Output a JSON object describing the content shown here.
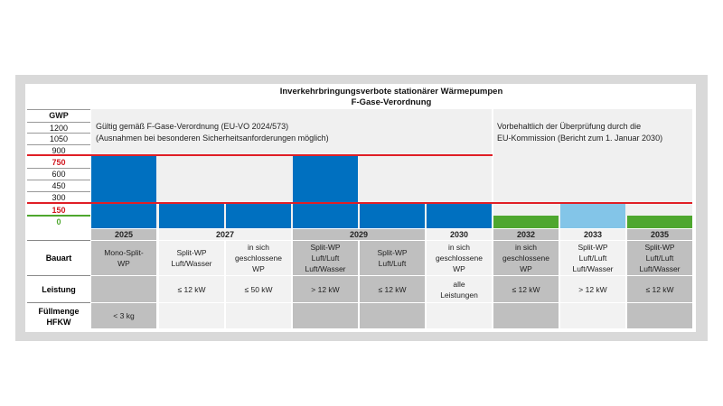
{
  "title": {
    "line1": "Inverkehrbringungsverbote stationärer Wärmepumpen",
    "line2": "F-Gase-Verordnung"
  },
  "notes": {
    "left_line1": "Gültig gemäß F-Gase-Verordnung (EU-VO 2024/573)",
    "left_line2": "(Ausnahmen bei besonderen Sicherheitsanforderungen möglich)",
    "right_line1": "Vorbehaltlich der Überprüfung durch die",
    "right_line2": "EU-Kommission (Bericht zum 1. Januar 2030)"
  },
  "axis": {
    "label": "GWP",
    "ticks": [
      "1200",
      "1050",
      "900",
      "750",
      "600",
      "450",
      "300",
      "150",
      "0"
    ]
  },
  "colors": {
    "blue": "#0070c0",
    "green": "#4ea72e",
    "light_blue": "#83c5e8",
    "red": "#e01e25"
  },
  "row_labels": {
    "bauart": "Bauart",
    "leistung": "Leistung",
    "fuellmenge_1": "Füllmenge",
    "fuellmenge_2": "HFKW"
  },
  "years": [
    "2025",
    "2027",
    "2029",
    "2030",
    "2032",
    "2033",
    "2035"
  ],
  "columns": [
    {
      "year": "2025",
      "bauart": "Mono-Split-\nWP",
      "leistung": "",
      "fuellmenge": "< 3 kg",
      "gwp_limit": 750
    },
    {
      "year": "2027",
      "bauart": "Split-WP\nLuft/Wasser",
      "leistung": "≤ 12 kW",
      "fuellmenge": "",
      "gwp_limit": 150
    },
    {
      "year": "2027",
      "bauart": "in sich\ngeschlossene\nWP",
      "leistung": "≤ 50 kW",
      "fuellmenge": "",
      "gwp_limit": 150
    },
    {
      "year": "2029",
      "bauart": "Split-WP\nLuft/Luft\nLuft/Wasser",
      "leistung": "> 12 kW",
      "fuellmenge": "",
      "gwp_limit": 750
    },
    {
      "year": "2029",
      "bauart": "Split-WP\nLuft/Luft",
      "leistung": "≤ 12 kW",
      "fuellmenge": "",
      "gwp_limit": 150
    },
    {
      "year": "2030",
      "bauart": "in sich\ngeschlossene\nWP",
      "leistung": "alle\nLeistungen",
      "fuellmenge": "",
      "gwp_limit": 150
    },
    {
      "year": "2032",
      "bauart": "in sich\ngeschlossene\nWP",
      "leistung": "≤ 12 kW",
      "fuellmenge": "",
      "gwp_limit": 0
    },
    {
      "year": "2033",
      "bauart": "Split-WP\nLuft/Luft\nLuft/Wasser",
      "leistung": "> 12 kW",
      "fuellmenge": "",
      "gwp_limit": 150
    },
    {
      "year": "2035",
      "bauart": "Split-WP\nLuft/Luft\nLuft/Wasser",
      "leistung": "≤ 12 kW",
      "fuellmenge": "",
      "gwp_limit": 0
    }
  ]
}
